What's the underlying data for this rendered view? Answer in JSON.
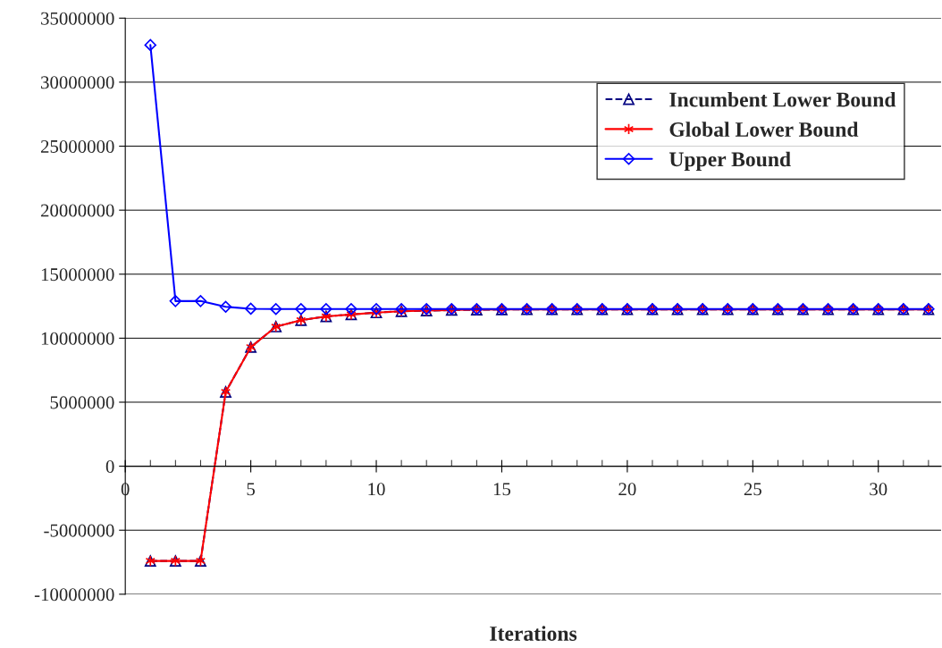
{
  "chart_data": {
    "type": "line",
    "xlabel": "Iterations",
    "x": [
      1,
      2,
      3,
      4,
      5,
      6,
      7,
      8,
      9,
      10,
      11,
      12,
      13,
      14,
      15,
      16,
      17,
      18,
      19,
      20,
      21,
      22,
      23,
      24,
      25,
      26,
      27,
      28,
      29,
      30,
      31,
      32
    ],
    "xlim": [
      0,
      32.5
    ],
    "xticks": [
      0,
      5,
      10,
      15,
      20,
      25,
      30
    ],
    "ylim": [
      -10000000,
      35000000
    ],
    "yticks": [
      -10000000,
      -5000000,
      0,
      5000000,
      10000000,
      15000000,
      20000000,
      25000000,
      30000000,
      35000000
    ],
    "grid": "y",
    "legend": "top right",
    "series": [
      {
        "name": "Incumbent Lower Bound",
        "color": "#000080",
        "marker": "triangle",
        "line_style": "dashed",
        "values": [
          -7400000,
          -7400000,
          -7400000,
          5800000,
          9300000,
          10900000,
          11400000,
          11700000,
          11850000,
          12000000,
          12100000,
          12150000,
          12200000,
          12220000,
          12240000,
          12250000,
          12250000,
          12250000,
          12250000,
          12250000,
          12250000,
          12250000,
          12250000,
          12250000,
          12250000,
          12250000,
          12250000,
          12250000,
          12250000,
          12250000,
          12250000,
          12250000
        ]
      },
      {
        "name": "Global Lower Bound",
        "color": "#ff0000",
        "marker": "cross",
        "line_style": "solid",
        "values": [
          -7400000,
          -7400000,
          -7400000,
          5800000,
          9300000,
          10900000,
          11400000,
          11700000,
          11850000,
          12000000,
          12100000,
          12150000,
          12200000,
          12220000,
          12240000,
          12250000,
          12250000,
          12250000,
          12250000,
          12250000,
          12250000,
          12250000,
          12250000,
          12250000,
          12250000,
          12250000,
          12250000,
          12250000,
          12250000,
          12250000,
          12250000,
          12250000
        ]
      },
      {
        "name": "Upper Bound",
        "color": "#0000ff",
        "marker": "diamond",
        "line_style": "solid",
        "values": [
          32900000,
          12900000,
          12900000,
          12450000,
          12300000,
          12280000,
          12280000,
          12280000,
          12280000,
          12280000,
          12280000,
          12280000,
          12280000,
          12280000,
          12280000,
          12280000,
          12280000,
          12280000,
          12280000,
          12280000,
          12280000,
          12280000,
          12280000,
          12280000,
          12280000,
          12280000,
          12280000,
          12280000,
          12280000,
          12280000,
          12280000,
          12280000
        ]
      }
    ]
  }
}
